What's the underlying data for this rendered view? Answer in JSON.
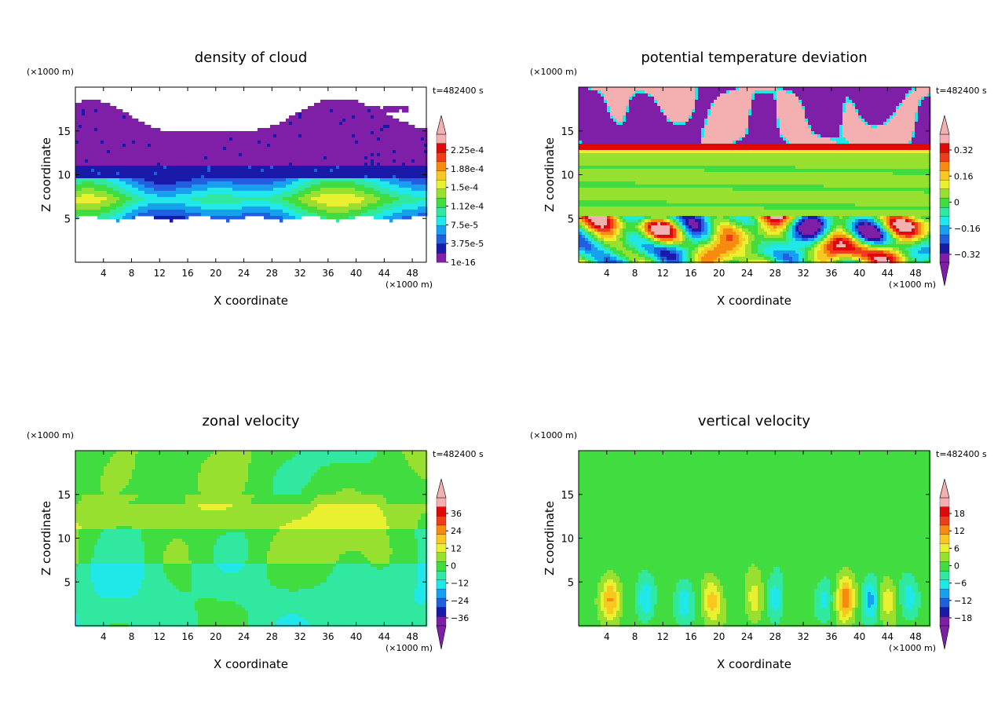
{
  "chart_data": [
    {
      "type": "heatmap",
      "title": "density of cloud",
      "xlabel": "X coordinate",
      "ylabel": "Z coordinate",
      "x_unit": "(×1000 m)",
      "y_unit": "(×1000 m)",
      "time_label": "t=482400 s",
      "xlim": [
        0,
        50
      ],
      "ylim": [
        0,
        20
      ],
      "xticks": [
        "4",
        "8",
        "12",
        "16",
        "20",
        "24",
        "28",
        "32",
        "36",
        "40",
        "44",
        "48"
      ],
      "yticks": [
        "5",
        "10",
        "15"
      ],
      "colorbar_labels": [
        "2.25e-4",
        "1.88e-4",
        "1.5e-4",
        "1.12e-4",
        "7.5e-5",
        "3.75e-5",
        "1e-16"
      ],
      "colorbar_open_low": false
    },
    {
      "type": "heatmap",
      "title": "potential temperature deviation",
      "xlabel": "X coordinate",
      "ylabel": "Z coordinate",
      "x_unit": "(×1000 m)",
      "y_unit": "(×1000 m)",
      "time_label": "t=482400 s",
      "xlim": [
        0,
        50
      ],
      "ylim": [
        0,
        20
      ],
      "xticks": [
        "4",
        "8",
        "12",
        "16",
        "20",
        "24",
        "28",
        "32",
        "36",
        "40",
        "44",
        "48"
      ],
      "yticks": [
        "5",
        "10",
        "15"
      ],
      "colorbar_labels": [
        "0.32",
        "0.16",
        "0",
        "−0.16",
        "−0.32"
      ],
      "colorbar_open_low": true
    },
    {
      "type": "heatmap",
      "title": "zonal velocity",
      "xlabel": "X coordinate",
      "ylabel": "Z coordinate",
      "x_unit": "(×1000 m)",
      "y_unit": "(×1000 m)",
      "time_label": "t=482400 s",
      "xlim": [
        0,
        50
      ],
      "ylim": [
        0,
        20
      ],
      "xticks": [
        "4",
        "8",
        "12",
        "16",
        "20",
        "24",
        "28",
        "32",
        "36",
        "40",
        "44",
        "48"
      ],
      "yticks": [
        "5",
        "10",
        "15"
      ],
      "colorbar_labels": [
        "36",
        "24",
        "12",
        "0",
        "−12",
        "−24",
        "−36"
      ],
      "colorbar_open_low": true
    },
    {
      "type": "heatmap",
      "title": "vertical velocity",
      "xlabel": "X coordinate",
      "ylabel": "Z coordinate",
      "x_unit": "(×1000 m)",
      "y_unit": "(×1000 m)",
      "time_label": "t=482400 s",
      "xlim": [
        0,
        50
      ],
      "ylim": [
        0,
        20
      ],
      "xticks": [
        "4",
        "8",
        "12",
        "16",
        "20",
        "24",
        "28",
        "32",
        "36",
        "40",
        "44",
        "48"
      ],
      "yticks": [
        "5",
        "10",
        "15"
      ],
      "colorbar_labels": [
        "18",
        "12",
        "6",
        "0",
        "−6",
        "−12",
        "−18"
      ],
      "colorbar_open_low": true
    }
  ]
}
